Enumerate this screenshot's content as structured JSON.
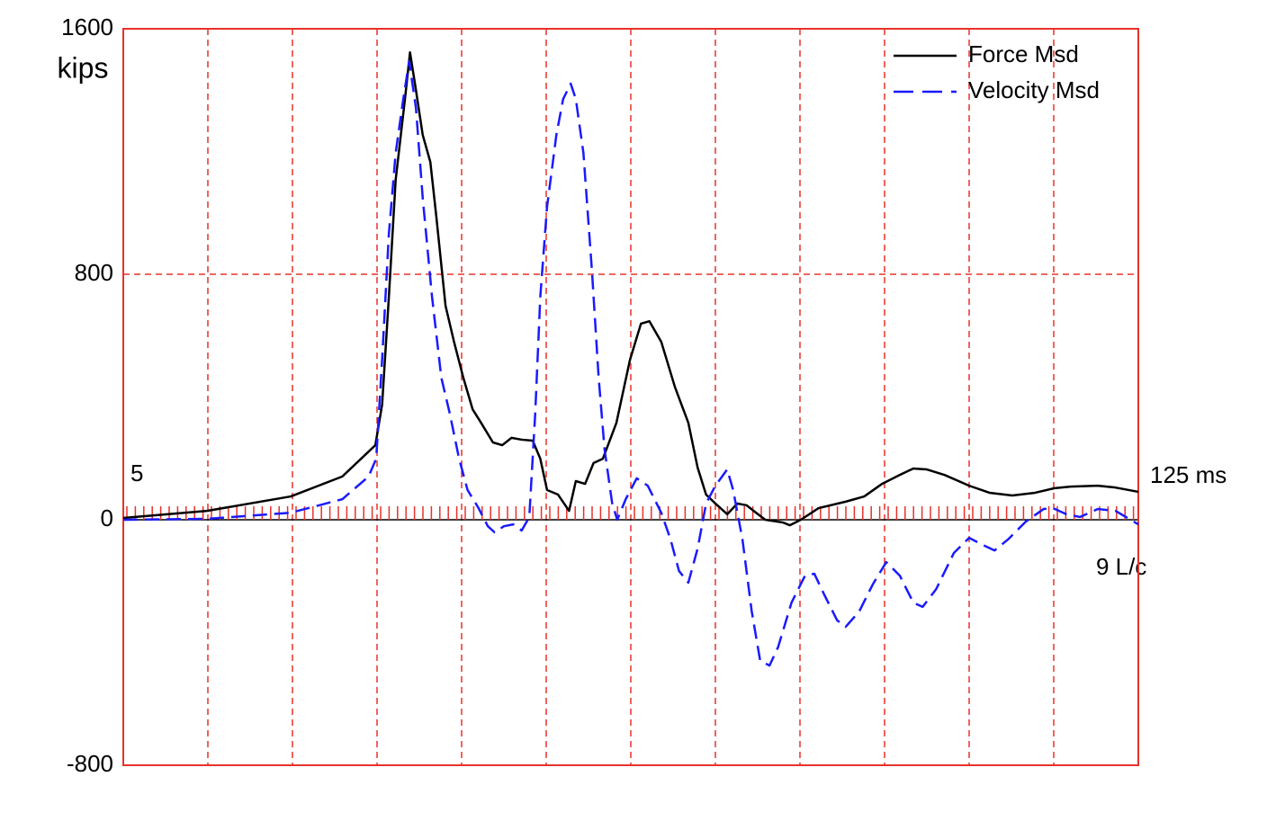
{
  "chart_data": {
    "type": "line",
    "ylabel": "kips",
    "annotations": [
      "5",
      "125 ms",
      "9 L/c"
    ],
    "xlim": [
      0,
      12
    ],
    "xticks": [
      1,
      2,
      3,
      4,
      5,
      6,
      7,
      8,
      9,
      10,
      11
    ],
    "ylim": [
      -800,
      1600
    ],
    "yticks": [
      -800,
      0,
      800,
      1600
    ],
    "grid": true,
    "legend": "upper right",
    "series": [
      {
        "name": "Force Msd",
        "color": "#000000",
        "dash": false,
        "x": [
          0,
          0.99,
          1.98,
          2.59,
          2.98,
          3.06,
          3.14,
          3.22,
          3.33,
          3.39,
          3.46,
          3.54,
          3.63,
          3.7,
          3.81,
          3.91,
          4.02,
          4.13,
          4.23,
          4.37,
          4.48,
          4.59,
          4.71,
          4.84,
          4.93,
          5.01,
          5.14,
          5.27,
          5.35,
          5.46,
          5.56,
          5.67,
          5.83,
          5.99,
          6.12,
          6.22,
          6.36,
          6.52,
          6.68,
          6.79,
          6.89,
          7.0,
          7.14,
          7.26,
          7.37,
          7.48,
          7.59,
          7.8,
          7.88,
          8.01,
          8.22,
          8.54,
          8.76,
          8.97,
          9.18,
          9.34,
          9.5,
          9.71,
          10.0,
          10.24,
          10.51,
          10.78,
          11.01,
          11.2,
          11.52,
          11.73,
          12
        ],
        "values": [
          6,
          29,
          76,
          141,
          243,
          375,
          727,
          1107,
          1371,
          1523,
          1400,
          1254,
          1166,
          990,
          697,
          580,
          463,
          360,
          316,
          252,
          243,
          267,
          261,
          258,
          199,
          97,
          82,
          29,
          126,
          117,
          185,
          199,
          316,
          521,
          639,
          647,
          580,
          434,
          316,
          170,
          82,
          53,
          18,
          53,
          47,
          23,
          0,
          -9,
          -18,
          0,
          38,
          59,
          76,
          117,
          146,
          167,
          164,
          146,
          111,
          88,
          79,
          88,
          103,
          108,
          111,
          105,
          91
        ]
      },
      {
        "name": "Velocity Msd",
        "color": "#1a1aff",
        "dash": true,
        "x": [
          0,
          0.99,
          1.98,
          2.59,
          2.9,
          2.99,
          3.06,
          3.14,
          3.22,
          3.31,
          3.38,
          3.46,
          3.54,
          3.65,
          3.76,
          3.86,
          3.97,
          4.07,
          4.2,
          4.31,
          4.39,
          4.5,
          4.61,
          4.71,
          4.8,
          4.87,
          4.93,
          5.01,
          5.12,
          5.2,
          5.29,
          5.35,
          5.44,
          5.54,
          5.62,
          5.69,
          5.78,
          5.84,
          5.94,
          6.07,
          6.2,
          6.36,
          6.47,
          6.57,
          6.68,
          6.79,
          6.89,
          7.0,
          7.14,
          7.21,
          7.32,
          7.43,
          7.53,
          7.64,
          7.74,
          7.9,
          8.06,
          8.17,
          8.28,
          8.44,
          8.54,
          8.7,
          8.86,
          9.02,
          9.18,
          9.34,
          9.45,
          9.61,
          9.82,
          10.0,
          10.14,
          10.3,
          10.46,
          10.67,
          10.88,
          10.99,
          11.15,
          11.31,
          11.52,
          11.73,
          12
        ],
        "values": [
          0,
          3,
          23,
          67,
          141,
          199,
          521,
          932,
          1195,
          1371,
          1494,
          1342,
          1049,
          727,
          463,
          346,
          199,
          97,
          38,
          -21,
          -41,
          -21,
          -15,
          -35,
          9,
          346,
          727,
          1020,
          1254,
          1371,
          1421,
          1371,
          1195,
          814,
          463,
          229,
          53,
          0,
          67,
          135,
          111,
          23,
          -64,
          -167,
          -205,
          -94,
          53,
          111,
          164,
          97,
          -64,
          -299,
          -460,
          -475,
          -416,
          -270,
          -182,
          -176,
          -240,
          -328,
          -349,
          -299,
          -211,
          -138,
          -182,
          -270,
          -284,
          -226,
          -108,
          -59,
          -79,
          -100,
          -64,
          -6,
          35,
          38,
          18,
          9,
          35,
          29,
          -15
        ]
      }
    ]
  }
}
